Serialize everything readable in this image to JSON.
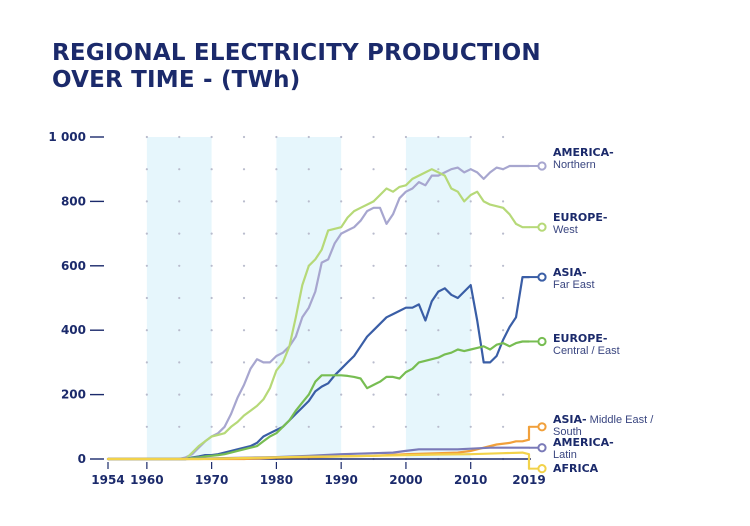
{
  "title_lines": [
    "REGIONAL ELECTRICITY PRODUCTION",
    "OVER TIME  - (TWh)"
  ],
  "chart_data": {
    "type": "line",
    "title": "REGIONAL ELECTRICITY PRODUCTION OVER TIME  - (TWh)",
    "xlim": [
      1954,
      2019
    ],
    "ylim": [
      0,
      1000
    ],
    "x_ticks": [
      1954,
      1960,
      1970,
      1980,
      1990,
      2000,
      2010,
      2019
    ],
    "y_ticks": [
      0,
      200,
      400,
      600,
      800,
      1000
    ],
    "y_tick_labels": [
      "0",
      "200",
      "400",
      "600",
      "800",
      "1 000"
    ],
    "shaded_decades": [
      [
        1960,
        1970
      ],
      [
        1980,
        1990
      ],
      [
        2000,
        2010
      ]
    ],
    "grid": "dotted",
    "series": [
      {
        "id": "america_north",
        "label_bold": "AMERICA",
        "label_rest": "Northern",
        "color": "#a7a6cf",
        "points": [
          [
            1954,
            0
          ],
          [
            1965,
            0
          ],
          [
            1966,
            5
          ],
          [
            1967,
            15
          ],
          [
            1968,
            35
          ],
          [
            1969,
            55
          ],
          [
            1970,
            70
          ],
          [
            1971,
            80
          ],
          [
            1972,
            100
          ],
          [
            1973,
            140
          ],
          [
            1974,
            190
          ],
          [
            1975,
            230
          ],
          [
            1976,
            280
          ],
          [
            1977,
            310
          ],
          [
            1978,
            300
          ],
          [
            1979,
            300
          ],
          [
            1980,
            320
          ],
          [
            1981,
            330
          ],
          [
            1982,
            350
          ],
          [
            1983,
            380
          ],
          [
            1984,
            440
          ],
          [
            1985,
            470
          ],
          [
            1986,
            520
          ],
          [
            1987,
            610
          ],
          [
            1988,
            620
          ],
          [
            1989,
            670
          ],
          [
            1990,
            700
          ],
          [
            1991,
            710
          ],
          [
            1992,
            720
          ],
          [
            1993,
            740
          ],
          [
            1994,
            770
          ],
          [
            1995,
            780
          ],
          [
            1996,
            780
          ],
          [
            1997,
            730
          ],
          [
            1998,
            760
          ],
          [
            1999,
            810
          ],
          [
            2000,
            830
          ],
          [
            2001,
            840
          ],
          [
            2002,
            860
          ],
          [
            2003,
            850
          ],
          [
            2004,
            880
          ],
          [
            2005,
            880
          ],
          [
            2006,
            890
          ],
          [
            2007,
            900
          ],
          [
            2008,
            905
          ],
          [
            2009,
            890
          ],
          [
            2010,
            900
          ],
          [
            2011,
            890
          ],
          [
            2012,
            870
          ],
          [
            2013,
            890
          ],
          [
            2014,
            905
          ],
          [
            2015,
            900
          ],
          [
            2016,
            910
          ],
          [
            2017,
            910
          ],
          [
            2018,
            910
          ],
          [
            2019,
            910
          ]
        ]
      },
      {
        "id": "europe_west",
        "label_bold": "EUROPE",
        "label_rest": "West",
        "color": "#b6d978",
        "points": [
          [
            1954,
            0
          ],
          [
            1966,
            0
          ],
          [
            1967,
            20
          ],
          [
            1968,
            40
          ],
          [
            1969,
            55
          ],
          [
            1970,
            70
          ],
          [
            1971,
            75
          ],
          [
            1972,
            80
          ],
          [
            1973,
            100
          ],
          [
            1974,
            115
          ],
          [
            1975,
            135
          ],
          [
            1976,
            150
          ],
          [
            1977,
            165
          ],
          [
            1978,
            185
          ],
          [
            1979,
            220
          ],
          [
            1980,
            275
          ],
          [
            1981,
            300
          ],
          [
            1982,
            350
          ],
          [
            1983,
            440
          ],
          [
            1984,
            540
          ],
          [
            1985,
            600
          ],
          [
            1986,
            620
          ],
          [
            1987,
            650
          ],
          [
            1988,
            710
          ],
          [
            1989,
            715
          ],
          [
            1990,
            720
          ],
          [
            1991,
            750
          ],
          [
            1992,
            770
          ],
          [
            1993,
            780
          ],
          [
            1994,
            790
          ],
          [
            1995,
            800
          ],
          [
            1996,
            820
          ],
          [
            1997,
            840
          ],
          [
            1998,
            830
          ],
          [
            1999,
            845
          ],
          [
            2000,
            850
          ],
          [
            2001,
            870
          ],
          [
            2002,
            880
          ],
          [
            2003,
            890
          ],
          [
            2004,
            900
          ],
          [
            2005,
            890
          ],
          [
            2006,
            880
          ],
          [
            2007,
            840
          ],
          [
            2008,
            830
          ],
          [
            2009,
            800
          ],
          [
            2010,
            820
          ],
          [
            2011,
            830
          ],
          [
            2012,
            800
          ],
          [
            2013,
            790
          ],
          [
            2014,
            785
          ],
          [
            2015,
            780
          ],
          [
            2016,
            760
          ],
          [
            2017,
            730
          ],
          [
            2018,
            720
          ],
          [
            2019,
            720
          ]
        ]
      },
      {
        "id": "asia_far_east",
        "label_bold": "ASIA",
        "label_rest": "Far East",
        "color": "#3a5ea6",
        "points": [
          [
            1954,
            0
          ],
          [
            1966,
            0
          ],
          [
            1967,
            5
          ],
          [
            1968,
            8
          ],
          [
            1969,
            12
          ],
          [
            1970,
            12
          ],
          [
            1971,
            15
          ],
          [
            1972,
            20
          ],
          [
            1973,
            25
          ],
          [
            1974,
            30
          ],
          [
            1975,
            35
          ],
          [
            1976,
            40
          ],
          [
            1977,
            50
          ],
          [
            1978,
            70
          ],
          [
            1979,
            80
          ],
          [
            1980,
            90
          ],
          [
            1981,
            100
          ],
          [
            1982,
            120
          ],
          [
            1983,
            140
          ],
          [
            1984,
            160
          ],
          [
            1985,
            180
          ],
          [
            1986,
            210
          ],
          [
            1987,
            225
          ],
          [
            1988,
            235
          ],
          [
            1989,
            260
          ],
          [
            1990,
            280
          ],
          [
            1991,
            300
          ],
          [
            1992,
            320
          ],
          [
            1993,
            350
          ],
          [
            1994,
            380
          ],
          [
            1995,
            400
          ],
          [
            1996,
            420
          ],
          [
            1997,
            440
          ],
          [
            1998,
            450
          ],
          [
            1999,
            460
          ],
          [
            2000,
            470
          ],
          [
            2001,
            470
          ],
          [
            2002,
            480
          ],
          [
            2003,
            430
          ],
          [
            2004,
            490
          ],
          [
            2005,
            520
          ],
          [
            2006,
            530
          ],
          [
            2007,
            510
          ],
          [
            2008,
            500
          ],
          [
            2009,
            520
          ],
          [
            2010,
            540
          ],
          [
            2011,
            430
          ],
          [
            2012,
            300
          ],
          [
            2013,
            300
          ],
          [
            2014,
            320
          ],
          [
            2015,
            370
          ],
          [
            2016,
            410
          ],
          [
            2017,
            440
          ],
          [
            2018,
            565
          ],
          [
            2019,
            565
          ]
        ]
      },
      {
        "id": "europe_central_east",
        "label_bold": "EUROPE",
        "label_rest": "Central / East",
        "color": "#77bd52",
        "points": [
          [
            1954,
            0
          ],
          [
            1966,
            0
          ],
          [
            1967,
            3
          ],
          [
            1968,
            5
          ],
          [
            1969,
            8
          ],
          [
            1970,
            10
          ],
          [
            1971,
            12
          ],
          [
            1972,
            15
          ],
          [
            1973,
            20
          ],
          [
            1974,
            25
          ],
          [
            1975,
            30
          ],
          [
            1976,
            35
          ],
          [
            1977,
            40
          ],
          [
            1978,
            55
          ],
          [
            1979,
            70
          ],
          [
            1980,
            80
          ],
          [
            1981,
            100
          ],
          [
            1982,
            120
          ],
          [
            1983,
            150
          ],
          [
            1984,
            175
          ],
          [
            1985,
            200
          ],
          [
            1986,
            240
          ],
          [
            1987,
            260
          ],
          [
            1988,
            260
          ],
          [
            1989,
            260
          ],
          [
            1990,
            260
          ],
          [
            1991,
            258
          ],
          [
            1992,
            255
          ],
          [
            1993,
            250
          ],
          [
            1994,
            220
          ],
          [
            1995,
            230
          ],
          [
            1996,
            240
          ],
          [
            1997,
            255
          ],
          [
            1998,
            255
          ],
          [
            1999,
            250
          ],
          [
            2000,
            270
          ],
          [
            2001,
            280
          ],
          [
            2002,
            300
          ],
          [
            2003,
            305
          ],
          [
            2004,
            310
          ],
          [
            2005,
            315
          ],
          [
            2006,
            325
          ],
          [
            2007,
            330
          ],
          [
            2008,
            340
          ],
          [
            2009,
            335
          ],
          [
            2010,
            340
          ],
          [
            2011,
            345
          ],
          [
            2012,
            350
          ],
          [
            2013,
            340
          ],
          [
            2014,
            355
          ],
          [
            2015,
            360
          ],
          [
            2016,
            350
          ],
          [
            2017,
            360
          ],
          [
            2018,
            365
          ],
          [
            2019,
            365
          ]
        ]
      },
      {
        "id": "asia_middle_east",
        "label_bold": "ASIA",
        "label_rest": "Middle East / South",
        "color": "#f1a03b",
        "points": [
          [
            1954,
            0
          ],
          [
            1975,
            0
          ],
          [
            1980,
            4
          ],
          [
            1985,
            6
          ],
          [
            1990,
            8
          ],
          [
            1995,
            10
          ],
          [
            2000,
            15
          ],
          [
            2005,
            18
          ],
          [
            2008,
            20
          ],
          [
            2010,
            25
          ],
          [
            2012,
            35
          ],
          [
            2014,
            45
          ],
          [
            2016,
            50
          ],
          [
            2017,
            55
          ],
          [
            2018,
            55
          ],
          [
            2019,
            60
          ],
          [
            2019,
            100
          ]
        ]
      },
      {
        "id": "america_latin",
        "label_bold": "AMERICA",
        "label_rest": "Latin",
        "color": "#7a7ab8",
        "points": [
          [
            1954,
            0
          ],
          [
            1966,
            0
          ],
          [
            1970,
            2
          ],
          [
            1975,
            4
          ],
          [
            1980,
            6
          ],
          [
            1985,
            10
          ],
          [
            1990,
            15
          ],
          [
            1995,
            18
          ],
          [
            1998,
            20
          ],
          [
            2000,
            25
          ],
          [
            2002,
            30
          ],
          [
            2005,
            30
          ],
          [
            2008,
            30
          ],
          [
            2010,
            32
          ],
          [
            2013,
            35
          ],
          [
            2016,
            35
          ],
          [
            2019,
            35
          ]
        ]
      },
      {
        "id": "africa",
        "label_bold": "AFRICA",
        "label_rest": "",
        "color": "#f2d24a",
        "points": [
          [
            1954,
            0
          ],
          [
            1968,
            0
          ],
          [
            1975,
            3
          ],
          [
            1980,
            5
          ],
          [
            1985,
            7
          ],
          [
            1990,
            8
          ],
          [
            1995,
            10
          ],
          [
            2000,
            12
          ],
          [
            2005,
            14
          ],
          [
            2010,
            15
          ],
          [
            2015,
            18
          ],
          [
            2018,
            20
          ],
          [
            2019,
            15
          ],
          [
            2019,
            -30
          ]
        ]
      }
    ]
  }
}
